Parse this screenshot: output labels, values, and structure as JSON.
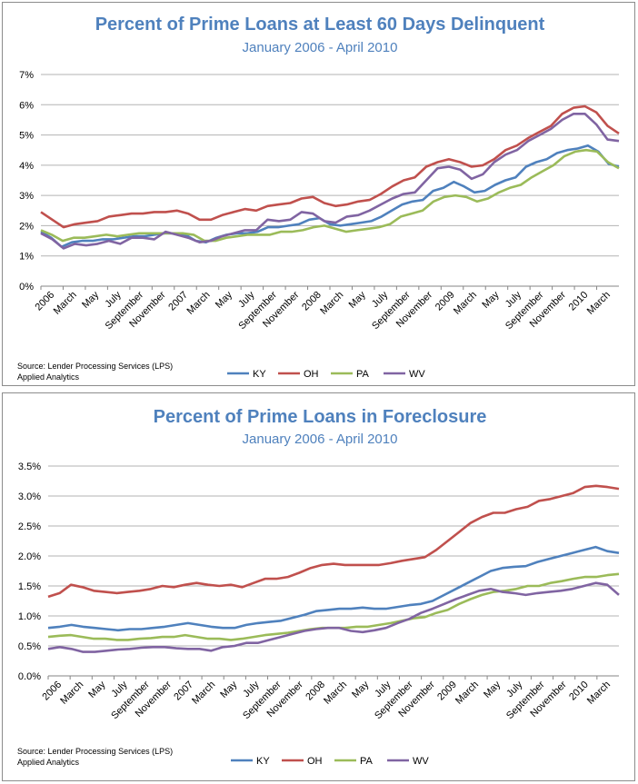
{
  "chart_data": [
    {
      "type": "line",
      "title": "Percent of Prime Loans at Least 60 Days Delinquent",
      "subtitle": "January 2006 - April 2010",
      "source": [
        "Source: Lender Processing Services (LPS)",
        "Applied Analytics"
      ],
      "ylim": [
        0,
        7
      ],
      "yticks": [
        0,
        1,
        2,
        3,
        4,
        5,
        6,
        7
      ],
      "ytick_suffix": "%",
      "ytick_decimals": 0,
      "x_tick_labels": [
        "2006",
        "March",
        "May",
        "July",
        "September",
        "November",
        "2007",
        "March",
        "May",
        "July",
        "September",
        "November",
        "2008",
        "March",
        "May",
        "July",
        "September",
        "November",
        "2009",
        "March",
        "May",
        "July",
        "September",
        "November",
        "2010",
        "March"
      ],
      "grid": "horizontal",
      "legend": "bottom",
      "series": [
        {
          "name": "KY",
          "color": "#4f81bd",
          "values": [
            1.8,
            1.6,
            1.3,
            1.45,
            1.5,
            1.5,
            1.55,
            1.55,
            1.6,
            1.65,
            1.65,
            1.7,
            1.75,
            1.75,
            1.7,
            1.5,
            1.45,
            1.6,
            1.7,
            1.75,
            1.75,
            1.8,
            1.95,
            1.95,
            2.0,
            2.05,
            2.2,
            2.25,
            2.05,
            2.0,
            2.05,
            2.1,
            2.15,
            2.3,
            2.5,
            2.7,
            2.8,
            2.85,
            3.15,
            3.25,
            3.45,
            3.3,
            3.1,
            3.15,
            3.35,
            3.5,
            3.6,
            3.95,
            4.1,
            4.2,
            4.4,
            4.5,
            4.55,
            4.65,
            4.45,
            4.05,
            3.95
          ]
        },
        {
          "name": "OH",
          "color": "#c0504d",
          "values": [
            2.45,
            2.2,
            1.95,
            2.05,
            2.1,
            2.15,
            2.3,
            2.35,
            2.4,
            2.4,
            2.45,
            2.45,
            2.5,
            2.4,
            2.2,
            2.2,
            2.35,
            2.45,
            2.55,
            2.5,
            2.65,
            2.7,
            2.75,
            2.9,
            2.95,
            2.75,
            2.65,
            2.7,
            2.8,
            2.85,
            3.05,
            3.3,
            3.5,
            3.6,
            3.95,
            4.1,
            4.2,
            4.1,
            3.95,
            4.0,
            4.2,
            4.5,
            4.65,
            4.9,
            5.1,
            5.3,
            5.7,
            5.9,
            5.95,
            5.75,
            5.3,
            5.05
          ]
        },
        {
          "name": "PA",
          "color": "#9bbb59",
          "values": [
            1.85,
            1.7,
            1.5,
            1.6,
            1.6,
            1.65,
            1.7,
            1.65,
            1.7,
            1.75,
            1.75,
            1.75,
            1.75,
            1.75,
            1.7,
            1.5,
            1.5,
            1.6,
            1.65,
            1.7,
            1.7,
            1.7,
            1.8,
            1.8,
            1.85,
            1.95,
            2.0,
            1.9,
            1.8,
            1.85,
            1.9,
            1.95,
            2.05,
            2.3,
            2.4,
            2.5,
            2.8,
            2.95,
            3.0,
            2.95,
            2.8,
            2.9,
            3.1,
            3.25,
            3.35,
            3.6,
            3.8,
            4.0,
            4.3,
            4.45,
            4.5,
            4.45,
            4.1,
            3.9
          ]
        },
        {
          "name": "WV",
          "color": "#8064a2",
          "values": [
            1.75,
            1.55,
            1.25,
            1.4,
            1.35,
            1.4,
            1.5,
            1.4,
            1.6,
            1.6,
            1.55,
            1.8,
            1.7,
            1.6,
            1.45,
            1.5,
            1.65,
            1.75,
            1.85,
            1.85,
            2.2,
            2.15,
            2.2,
            2.45,
            2.4,
            2.15,
            2.1,
            2.3,
            2.35,
            2.5,
            2.7,
            2.9,
            3.05,
            3.1,
            3.5,
            3.9,
            3.95,
            3.85,
            3.55,
            3.7,
            4.1,
            4.35,
            4.5,
            4.8,
            5.0,
            5.2,
            5.5,
            5.7,
            5.7,
            5.35,
            4.85,
            4.8
          ]
        }
      ]
    },
    {
      "type": "line",
      "title": "Percent of Prime Loans in Foreclosure",
      "subtitle": "January 2006 - April 2010",
      "source": [
        "Source: Lender Processing Services (LPS)",
        "Applied Analytics"
      ],
      "ylim": [
        0,
        3.5
      ],
      "yticks": [
        0,
        0.5,
        1,
        1.5,
        2,
        2.5,
        3,
        3.5
      ],
      "ytick_suffix": "%",
      "ytick_decimals": 1,
      "x_tick_labels": [
        "2006",
        "March",
        "May",
        "July",
        "September",
        "November",
        "2007",
        "March",
        "May",
        "July",
        "September",
        "November",
        "2008",
        "March",
        "May",
        "July",
        "September",
        "November",
        "2009",
        "March",
        "May",
        "July",
        "September",
        "November",
        "2010",
        "March"
      ],
      "grid": "horizontal",
      "legend": "bottom",
      "series": [
        {
          "name": "KY",
          "color": "#4f81bd",
          "values": [
            0.8,
            0.82,
            0.85,
            0.82,
            0.8,
            0.78,
            0.76,
            0.78,
            0.78,
            0.8,
            0.82,
            0.85,
            0.88,
            0.85,
            0.82,
            0.8,
            0.8,
            0.85,
            0.88,
            0.9,
            0.92,
            0.97,
            1.02,
            1.08,
            1.1,
            1.12,
            1.12,
            1.14,
            1.12,
            1.12,
            1.15,
            1.18,
            1.2,
            1.25,
            1.35,
            1.45,
            1.55,
            1.65,
            1.75,
            1.8,
            1.82,
            1.83,
            1.9,
            1.95,
            2.0,
            2.05,
            2.1,
            2.15,
            2.08,
            2.05
          ]
        },
        {
          "name": "OH",
          "color": "#c0504d",
          "values": [
            1.32,
            1.38,
            1.52,
            1.48,
            1.42,
            1.4,
            1.38,
            1.4,
            1.42,
            1.45,
            1.5,
            1.48,
            1.52,
            1.55,
            1.52,
            1.5,
            1.52,
            1.48,
            1.55,
            1.62,
            1.62,
            1.65,
            1.72,
            1.8,
            1.85,
            1.87,
            1.85,
            1.85,
            1.85,
            1.85,
            1.88,
            1.92,
            1.95,
            1.98,
            2.1,
            2.25,
            2.4,
            2.55,
            2.65,
            2.72,
            2.72,
            2.78,
            2.82,
            2.92,
            2.95,
            3.0,
            3.05,
            3.15,
            3.17,
            3.15,
            3.12
          ]
        },
        {
          "name": "PA",
          "color": "#9bbb59",
          "values": [
            0.65,
            0.67,
            0.68,
            0.65,
            0.62,
            0.62,
            0.6,
            0.6,
            0.62,
            0.63,
            0.65,
            0.65,
            0.68,
            0.65,
            0.62,
            0.62,
            0.6,
            0.62,
            0.65,
            0.68,
            0.7,
            0.72,
            0.75,
            0.78,
            0.8,
            0.8,
            0.8,
            0.82,
            0.82,
            0.85,
            0.88,
            0.92,
            0.96,
            0.98,
            1.05,
            1.1,
            1.2,
            1.28,
            1.35,
            1.4,
            1.42,
            1.45,
            1.5,
            1.5,
            1.55,
            1.58,
            1.62,
            1.65,
            1.65,
            1.68,
            1.7
          ]
        },
        {
          "name": "WV",
          "color": "#8064a2",
          "values": [
            0.45,
            0.48,
            0.45,
            0.4,
            0.4,
            0.42,
            0.44,
            0.45,
            0.47,
            0.48,
            0.48,
            0.46,
            0.45,
            0.45,
            0.42,
            0.48,
            0.5,
            0.55,
            0.55,
            0.6,
            0.65,
            0.7,
            0.75,
            0.78,
            0.8,
            0.8,
            0.75,
            0.73,
            0.76,
            0.8,
            0.88,
            0.95,
            1.05,
            1.12,
            1.2,
            1.28,
            1.35,
            1.42,
            1.45,
            1.4,
            1.38,
            1.35,
            1.38,
            1.4,
            1.42,
            1.45,
            1.5,
            1.55,
            1.52,
            1.35
          ]
        }
      ]
    }
  ]
}
